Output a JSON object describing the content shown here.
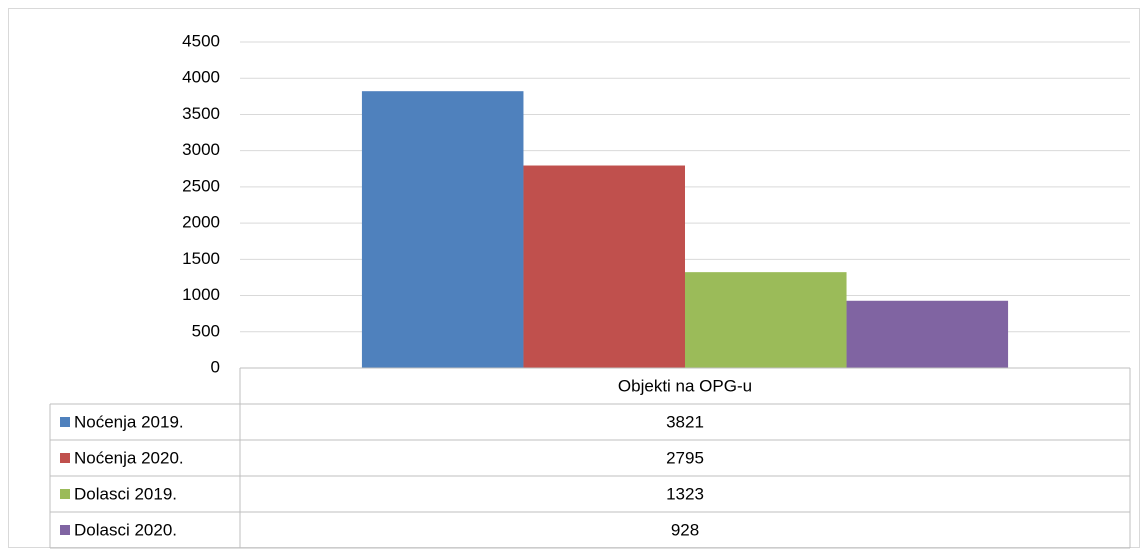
{
  "chart_data": {
    "type": "bar",
    "categories": [
      "Objekti na OPG-u"
    ],
    "series": [
      {
        "name": "Noćenja 2019.",
        "color": "#4f81bd",
        "values": [
          3821
        ]
      },
      {
        "name": "Noćenja 2020.",
        "color": "#c0504d",
        "values": [
          2795
        ]
      },
      {
        "name": "Dolasci 2019.",
        "color": "#9bbb59",
        "values": [
          1323
        ]
      },
      {
        "name": "Dolasci 2020.",
        "color": "#8064a2",
        "values": [
          928
        ]
      }
    ],
    "ylim": [
      0,
      4500
    ],
    "yticks": [
      0,
      500,
      1000,
      1500,
      2000,
      2500,
      3000,
      3500,
      4000,
      4500
    ],
    "grid": true,
    "data_table": true
  }
}
